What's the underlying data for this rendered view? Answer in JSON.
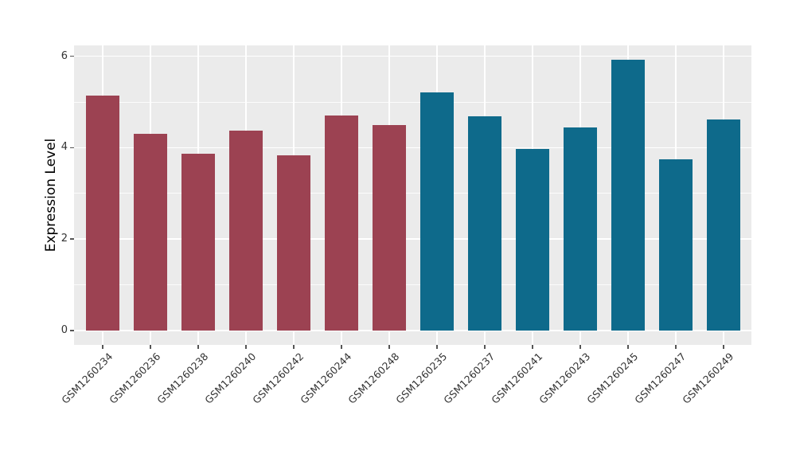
{
  "chart_data": {
    "type": "bar",
    "title": "",
    "xlabel": "",
    "ylabel": "Expression Level",
    "categories": [
      "GSM1260234",
      "GSM1260236",
      "GSM1260238",
      "GSM1260240",
      "GSM1260242",
      "GSM1260244",
      "GSM1260248",
      "GSM1260235",
      "GSM1260237",
      "GSM1260241",
      "GSM1260243",
      "GSM1260245",
      "GSM1260247",
      "GSM1260249"
    ],
    "values": [
      5.14,
      4.3,
      3.86,
      4.37,
      3.83,
      4.7,
      4.49,
      5.21,
      4.69,
      3.97,
      4.45,
      5.93,
      3.74,
      4.62
    ],
    "groups": [
      "A",
      "A",
      "A",
      "A",
      "A",
      "A",
      "A",
      "B",
      "B",
      "B",
      "B",
      "B",
      "B",
      "B"
    ],
    "group_colors": {
      "A": "#9c4252",
      "B": "#0e6a8b"
    },
    "yticks": [
      0,
      2,
      4,
      6
    ],
    "ytick_labels": [
      "0",
      "2",
      "4",
      "6"
    ],
    "minor_gridlines": [
      1,
      3,
      5
    ],
    "ylim": [
      -0.31,
      6.24
    ],
    "grid": true,
    "legend": false,
    "panel_bg": "#ebebeb",
    "grid_color": "#ffffff",
    "tick_color": "#555555",
    "axis_text_color": "#333333",
    "bar_width_fraction": 0.7
  }
}
